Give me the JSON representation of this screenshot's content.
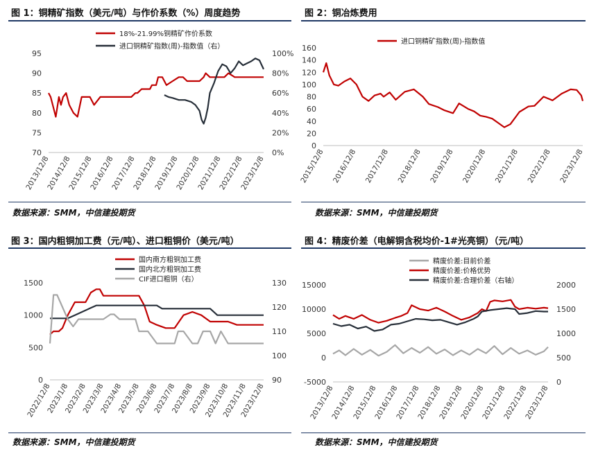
{
  "source_text": "数据来源：SMM，中信建投期货",
  "charts": [
    {
      "title": "图 1：铜精矿指数（美元/吨）与作价系数（%）周度趋势",
      "chart_data": {
        "type": "line",
        "x_ticks": [
          "2013/12/8",
          "2014/12/8",
          "2015/12/8",
          "2016/12/8",
          "2017/12/8",
          "2018/12/8",
          "2019/12/8",
          "2020/12/8",
          "2021/12/8",
          "2022/12/8",
          "2023/12/8"
        ],
        "left_axis": {
          "ticks": [
            70,
            75,
            80,
            85,
            90,
            95
          ],
          "ylim": [
            70,
            95
          ]
        },
        "right_axis": {
          "ticks": [
            "0%",
            "20%",
            "40%",
            "60%",
            "80%",
            "100%"
          ],
          "ylim": [
            0,
            100
          ]
        },
        "legend_position": "top",
        "series": [
          {
            "name": "18%-21.99%铜精矿作价系数",
            "axis": "left",
            "color": "#c00000",
            "x": [
              0,
              0.1,
              0.2,
              0.35,
              0.5,
              0.6,
              0.7,
              0.85,
              1.0,
              1.2,
              1.4,
              1.6,
              1.8,
              2.0,
              2.2,
              2.5,
              2.7,
              3.0,
              3.5,
              4.0,
              4.2,
              4.3,
              4.5,
              4.7,
              4.9,
              5.0,
              5.2,
              5.3,
              5.5,
              5.7,
              6.0,
              6.3,
              6.5,
              6.7,
              7.0,
              7.3,
              7.5,
              7.6,
              7.8,
              8.0,
              8.3,
              8.5,
              8.7,
              9.0,
              9.5,
              10.0,
              10.4
            ],
            "y": [
              85,
              84,
              82,
              79,
              84,
              82,
              84,
              85,
              82,
              80,
              79,
              84,
              84,
              84,
              82,
              84,
              84,
              84,
              84,
              84,
              85,
              85,
              86,
              86,
              86,
              87,
              87,
              89,
              89,
              87,
              88,
              89,
              89,
              88,
              88,
              88,
              89,
              90,
              89,
              89,
              89,
              89,
              90,
              89,
              89,
              89,
              89
            ]
          },
          {
            "name": "进口铜精矿指数(周)-指数值（右）",
            "axis": "right",
            "color": "#262e38",
            "x": [
              5.6,
              5.8,
              6.0,
              6.3,
              6.6,
              6.9,
              7.1,
              7.3,
              7.4,
              7.5,
              7.6,
              7.7,
              7.8,
              8.0,
              8.2,
              8.4,
              8.6,
              8.8,
              9.0,
              9.2,
              9.4,
              9.6,
              9.8,
              10.0,
              10.2,
              10.4
            ],
            "y": [
              58,
              56,
              55,
              53,
              53,
              51,
              48,
              42,
              33,
              29,
              35,
              45,
              60,
              70,
              82,
              89,
              87,
              80,
              85,
              92,
              88,
              90,
              92,
              95,
              93,
              84
            ]
          }
        ]
      }
    },
    {
      "title": "图 2：铜冶炼费用",
      "chart_data": {
        "type": "line",
        "x_ticks": [
          "2015/12/8",
          "2016/12/8",
          "2017/12/8",
          "2018/12/8",
          "2019/12/8",
          "2020/12/8",
          "2021/12/8",
          "2022/12/8",
          "2023/12/8"
        ],
        "left_axis": {
          "ticks": [
            0,
            20,
            40,
            60,
            80,
            100,
            120,
            140,
            160
          ],
          "ylim": [
            0,
            160
          ]
        },
        "legend_position": "top",
        "series": [
          {
            "name": "进口铜精矿指数(周)-指数值",
            "axis": "left",
            "color": "#c00000",
            "x": [
              0,
              0.1,
              0.2,
              0.35,
              0.5,
              0.7,
              0.9,
              1.1,
              1.3,
              1.5,
              1.7,
              1.9,
              2.0,
              2.2,
              2.4,
              2.7,
              3.0,
              3.3,
              3.5,
              3.8,
              4.0,
              4.3,
              4.5,
              4.8,
              5.0,
              5.2,
              5.4,
              5.6,
              5.8,
              6.0,
              6.2,
              6.5,
              6.8,
              7.0,
              7.3,
              7.6,
              7.9,
              8.2,
              8.4,
              8.55,
              8.6
            ],
            "y": [
              120,
              135,
              115,
              100,
              98,
              105,
              110,
              100,
              80,
              73,
              82,
              85,
              80,
              87,
              75,
              88,
              92,
              80,
              68,
              63,
              58,
              53,
              69,
              60,
              56,
              49,
              47,
              44,
              37,
              30,
              35,
              55,
              64,
              65,
              80,
              74,
              85,
              92,
              91,
              82,
              73
            ]
          }
        ]
      }
    },
    {
      "title": "图 3：国内粗铜加工费（元/吨）、进口粗铜价（美元/吨）",
      "chart_data": {
        "type": "line",
        "x_ticks": [
          "2022/12/8",
          "2023/1/8",
          "2023/2/8",
          "2023/3/8",
          "2023/4/8",
          "2023/5/8",
          "2023/6/8",
          "2023/7/8",
          "2023/8/8",
          "2023/9/8",
          "2023/10/8",
          "2023/11/8",
          "2023/12/8"
        ],
        "left_axis": {
          "ticks": [
            0,
            500,
            1000,
            1500
          ],
          "ylim": [
            0,
            1500
          ]
        },
        "right_axis": {
          "ticks": [
            90,
            100,
            110,
            120,
            130
          ],
          "ylim": [
            90,
            130
          ]
        },
        "legend_position": "top",
        "series": [
          {
            "name": "国内南方粗铜加工费",
            "axis": "left",
            "color": "#c00000",
            "x": [
              0,
              0.2,
              0.5,
              0.7,
              1.0,
              1.4,
              2.0,
              2.3,
              2.6,
              2.8,
              3.0,
              3.5,
              4.0,
              4.5,
              5.0,
              5.3,
              5.6,
              6.0,
              6.5,
              7.0,
              7.5,
              8.0,
              8.5,
              9.0,
              9.5,
              10.0,
              10.5,
              11.0,
              11.5,
              12.0
            ],
            "y": [
              700,
              750,
              750,
              800,
              1000,
              1200,
              1200,
              1350,
              1400,
              1400,
              1300,
              1300,
              1300,
              1300,
              1300,
              1150,
              900,
              850,
              800,
              800,
              1000,
              1050,
              1000,
              900,
              900,
              900,
              850,
              850,
              850,
              850
            ]
          },
          {
            "name": "国内北方粗铜加工费",
            "axis": "left",
            "color": "#262e38",
            "x": [
              0,
              1.0,
              1.4,
              2.2,
              2.6,
              4.3,
              6.0,
              6.3,
              7.0,
              7.5,
              8.0,
              9.0,
              9.4,
              10.0,
              11.0,
              12.0
            ],
            "y": [
              950,
              950,
              1000,
              1100,
              1150,
              1150,
              1150,
              1100,
              1100,
              1100,
              1100,
              1100,
              1000,
              1000,
              1000,
              1000
            ]
          },
          {
            "name": "CIF进口粗铜（右）",
            "axis": "right",
            "color": "#a6a6a6",
            "x": [
              0,
              0.2,
              0.4,
              0.7,
              1.0,
              1.3,
              1.6,
              2.0,
              2.5,
              3.0,
              3.4,
              3.6,
              3.9,
              4.3,
              4.8,
              5.0,
              5.5,
              6.0,
              6.5,
              7.0,
              7.2,
              7.5,
              8.0,
              8.3,
              8.6,
              9.0,
              9.3,
              9.6,
              10.0,
              10.5,
              11.0,
              11.5,
              12.0
            ],
            "y": [
              105,
              125,
              125,
              120,
              115,
              112,
              115,
              115,
              115,
              115,
              117,
              117,
              115,
              115,
              115,
              110,
              110,
              105,
              105,
              105,
              110,
              110,
              105,
              105,
              110,
              110,
              105,
              110,
              105,
              105,
              105,
              105,
              105
            ]
          }
        ]
      }
    },
    {
      "title": "图 4：精废价差（电解铜含税均价-1#光亮铜）（元/吨）",
      "chart_data": {
        "type": "line",
        "x_ticks": [
          "2013/12/8",
          "2014/12/8",
          "2015/12/8",
          "2016/12/8",
          "2017/12/8",
          "2018/12/8",
          "2019/12/8",
          "2020/12/8",
          "2021/12/8",
          "2022/12/8",
          "2023/12/8"
        ],
        "left_axis": {
          "ticks": [
            -5000,
            0,
            5000,
            10000,
            15000
          ],
          "ylim": [
            -5000,
            15000
          ]
        },
        "right_axis": {
          "ticks": [
            0,
            500,
            1000,
            1500,
            2000
          ],
          "ylim": [
            0,
            2000
          ]
        },
        "legend_position": "top",
        "series": [
          {
            "name": "精废价差:目前价差",
            "axis": "left",
            "color": "#a6a6a6",
            "x": [
              0,
              0.3,
              0.6,
              1.0,
              1.4,
              1.8,
              2.2,
              2.6,
              3.0,
              3.4,
              3.8,
              4.2,
              4.6,
              5.0,
              5.4,
              5.8,
              6.2,
              6.6,
              7.0,
              7.4,
              7.8,
              8.2,
              8.6,
              9.0,
              9.4,
              9.8,
              10.2,
              10.4
            ],
            "y": [
              800,
              1500,
              500,
              1800,
              600,
              1600,
              400,
              1200,
              2600,
              900,
              2000,
              1000,
              2200,
              800,
              1700,
              500,
              1500,
              600,
              1800,
              900,
              2400,
              700,
              2000,
              800,
              1500,
              600,
              1300,
              2200
            ]
          },
          {
            "name": "精废价差:价格优势",
            "axis": "left",
            "color": "#c00000",
            "x": [
              0,
              0.3,
              0.6,
              1.0,
              1.4,
              1.8,
              2.2,
              2.6,
              3.0,
              3.3,
              3.6,
              3.8,
              4.2,
              4.6,
              5.0,
              5.4,
              5.8,
              6.2,
              6.6,
              7.0,
              7.2,
              7.4,
              7.6,
              7.8,
              8.2,
              8.6,
              8.8,
              9.0,
              9.4,
              9.8,
              10.2,
              10.4
            ],
            "y": [
              8800,
              8000,
              8600,
              8000,
              8800,
              7800,
              7200,
              7600,
              8200,
              8600,
              9200,
              10800,
              10000,
              9700,
              10300,
              9500,
              8600,
              7800,
              8300,
              9200,
              10000,
              9600,
              11500,
              11800,
              11600,
              11900,
              10500,
              10000,
              10300,
              10100,
              10300,
              10200
            ]
          },
          {
            "name": "精废价差:合理价差（右轴）",
            "axis": "right",
            "color": "#262e38",
            "x": [
              0,
              0.4,
              0.8,
              1.2,
              1.6,
              2.0,
              2.4,
              2.8,
              3.2,
              3.6,
              4.0,
              4.4,
              4.8,
              5.2,
              5.6,
              6.0,
              6.4,
              6.8,
              7.0,
              7.2,
              7.6,
              8.0,
              8.4,
              8.8,
              9.0,
              9.4,
              9.8,
              10.2,
              10.4
            ],
            "y": [
              1200,
              1150,
              1180,
              1100,
              1140,
              1050,
              1080,
              1180,
              1200,
              1250,
              1300,
              1290,
              1270,
              1280,
              1230,
              1180,
              1230,
              1300,
              1350,
              1450,
              1480,
              1500,
              1520,
              1500,
              1400,
              1420,
              1460,
              1450,
              1450
            ]
          }
        ]
      }
    }
  ]
}
